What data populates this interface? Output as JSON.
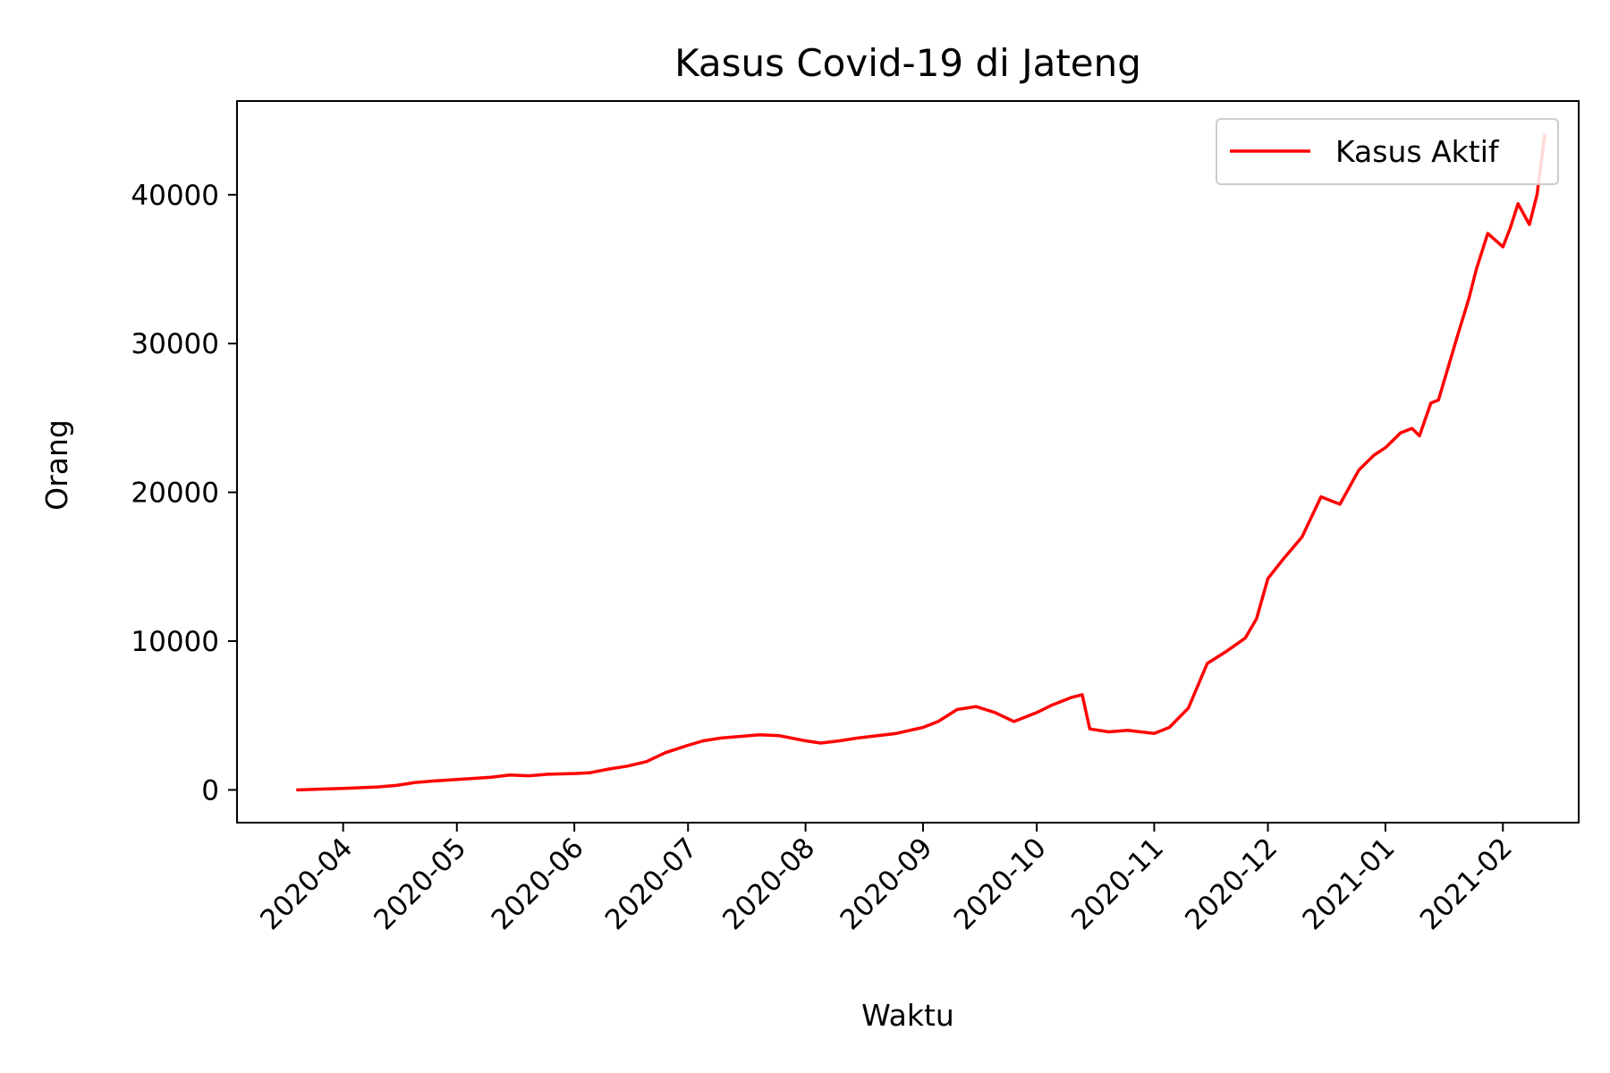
{
  "chart_data": {
    "type": "line",
    "title": "Kasus Covid-19 di Jateng",
    "xlabel": "Waktu",
    "ylabel": "Orang",
    "legend": {
      "placement": "top-right",
      "entries": [
        "Kasus Aktif"
      ]
    },
    "grid": false,
    "x_range": [
      "2020-03-04",
      "2021-02-21"
    ],
    "ylim": [
      -2200,
      46300
    ],
    "x_ticks": [
      "2020-04",
      "2020-05",
      "2020-06",
      "2020-07",
      "2020-08",
      "2020-09",
      "2020-10",
      "2020-11",
      "2020-12",
      "2021-01",
      "2021-02"
    ],
    "y_ticks": [
      "0",
      "10000",
      "20000",
      "30000",
      "40000"
    ],
    "colors": {
      "series": "#ff0000",
      "axes": "#000000"
    },
    "series": [
      {
        "name": "Kasus Aktif",
        "x": [
          "2020-03-20",
          "2020-04-01",
          "2020-04-10",
          "2020-04-15",
          "2020-04-20",
          "2020-04-25",
          "2020-05-01",
          "2020-05-10",
          "2020-05-15",
          "2020-05-20",
          "2020-05-25",
          "2020-06-01",
          "2020-06-05",
          "2020-06-10",
          "2020-06-15",
          "2020-06-20",
          "2020-06-25",
          "2020-07-01",
          "2020-07-05",
          "2020-07-10",
          "2020-07-15",
          "2020-07-20",
          "2020-07-25",
          "2020-08-01",
          "2020-08-05",
          "2020-08-10",
          "2020-08-15",
          "2020-08-20",
          "2020-08-25",
          "2020-09-01",
          "2020-09-05",
          "2020-09-10",
          "2020-09-15",
          "2020-09-20",
          "2020-09-25",
          "2020-10-01",
          "2020-10-05",
          "2020-10-10",
          "2020-10-13",
          "2020-10-15",
          "2020-10-20",
          "2020-10-25",
          "2020-11-01",
          "2020-11-05",
          "2020-11-10",
          "2020-11-15",
          "2020-11-20",
          "2020-11-25",
          "2020-11-28",
          "2020-12-01",
          "2020-12-05",
          "2020-12-10",
          "2020-12-15",
          "2020-12-18",
          "2020-12-20",
          "2020-12-25",
          "2020-12-29",
          "2021-01-01",
          "2021-01-05",
          "2021-01-08",
          "2021-01-10",
          "2021-01-13",
          "2021-01-15",
          "2021-01-20",
          "2021-01-23",
          "2021-01-25",
          "2021-01-28",
          "2021-02-01",
          "2021-02-03",
          "2021-02-05",
          "2021-02-08",
          "2021-02-10",
          "2021-02-12"
        ],
        "values": [
          0,
          100,
          200,
          300,
          500,
          600,
          700,
          850,
          1000,
          950,
          1050,
          1100,
          1150,
          1400,
          1600,
          1900,
          2500,
          3000,
          3300,
          3500,
          3600,
          3700,
          3650,
          3300,
          3150,
          3300,
          3500,
          3650,
          3800,
          4200,
          4600,
          5400,
          5600,
          5200,
          4600,
          5200,
          5700,
          6200,
          6400,
          4100,
          3900,
          4000,
          3800,
          4200,
          5500,
          8500,
          9300,
          10200,
          11500,
          14200,
          15500,
          17000,
          19700,
          19400,
          19200,
          21500,
          22500,
          23000,
          24000,
          24300,
          23800,
          26000,
          26200,
          30500,
          33000,
          35000,
          37400,
          36500,
          37800,
          39400,
          38000,
          40000,
          44000
        ]
      }
    ]
  }
}
